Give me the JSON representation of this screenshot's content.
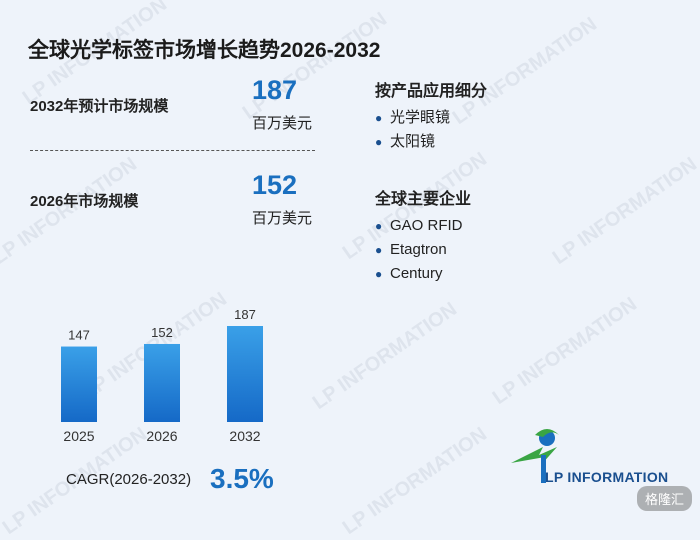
{
  "title": "全球光学标签市场增长趋势2026-2032",
  "metrics": {
    "forecast_label": "2032年预计市场规模",
    "forecast_value": "187",
    "forecast_unit": "百万美元",
    "current_label": "2026年市场规模",
    "current_value": "152",
    "current_unit": "百万美元"
  },
  "segments": {
    "title": "按产品应用细分",
    "items": [
      "光学眼镜",
      "太阳镜"
    ]
  },
  "companies": {
    "title": "全球主要企业",
    "items": [
      "GAO RFID",
      "Etagtron",
      "Century"
    ]
  },
  "cagr": {
    "label": "CAGR(2026-2032)",
    "value": "3.5%"
  },
  "logo": {
    "text": "LP INFORMATION",
    "watermark": "LP INFORMATION"
  },
  "badge": "格隆汇",
  "colors": {
    "accent": "#1a6fbf",
    "bar_top": "#3aa0e8",
    "bar_bottom": "#1569c7",
    "logo_green": "#3aa544"
  },
  "chart_data": {
    "type": "bar",
    "categories": [
      "2025",
      "2026",
      "2032"
    ],
    "values": [
      147,
      152,
      187
    ],
    "ylim": [
      0,
      187
    ]
  }
}
